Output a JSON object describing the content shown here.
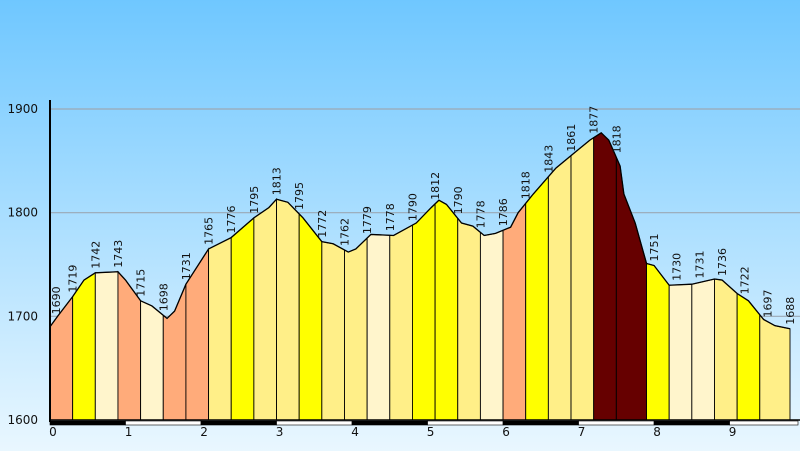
{
  "chart_data": {
    "type": "area",
    "title": "",
    "xlabel": "",
    "ylabel": "",
    "xlim": [
      0,
      9.8
    ],
    "ylim": [
      1600,
      1900
    ],
    "yticks": [
      1600,
      1700,
      1800,
      1900
    ],
    "xticks": [
      0,
      1,
      2,
      3,
      4,
      5,
      6,
      7,
      8,
      9
    ],
    "grid": true,
    "colors": {
      "background_top": "#6FC7FF",
      "background_bottom": "#E9F7FF",
      "gridline": "#9BA8B4",
      "segment_palette": {
        "orange": "#FFAB7A",
        "yellow": "#FFFF00",
        "light_yellow": "#FFEF88",
        "cream": "#FFF5CC",
        "dark_red": "#660000"
      }
    },
    "profile": [
      [
        0.0,
        1690
      ],
      [
        0.1,
        1700
      ],
      [
        0.3,
        1719
      ],
      [
        0.45,
        1735
      ],
      [
        0.6,
        1742
      ],
      [
        0.9,
        1743
      ],
      [
        1.0,
        1735
      ],
      [
        1.2,
        1715
      ],
      [
        1.35,
        1710
      ],
      [
        1.55,
        1698
      ],
      [
        1.65,
        1705
      ],
      [
        1.8,
        1731
      ],
      [
        2.1,
        1765
      ],
      [
        2.4,
        1776
      ],
      [
        2.7,
        1795
      ],
      [
        2.9,
        1805
      ],
      [
        3.0,
        1813
      ],
      [
        3.15,
        1810
      ],
      [
        3.35,
        1795
      ],
      [
        3.6,
        1772
      ],
      [
        3.75,
        1770
      ],
      [
        3.95,
        1762
      ],
      [
        4.05,
        1765
      ],
      [
        4.25,
        1779
      ],
      [
        4.55,
        1778
      ],
      [
        4.85,
        1790
      ],
      [
        5.05,
        1805
      ],
      [
        5.15,
        1812
      ],
      [
        5.25,
        1808
      ],
      [
        5.45,
        1790
      ],
      [
        5.6,
        1787
      ],
      [
        5.75,
        1778
      ],
      [
        5.9,
        1780
      ],
      [
        6.1,
        1786
      ],
      [
        6.2,
        1800
      ],
      [
        6.4,
        1818
      ],
      [
        6.7,
        1843
      ],
      [
        7.0,
        1861
      ],
      [
        7.15,
        1870
      ],
      [
        7.3,
        1877
      ],
      [
        7.4,
        1870
      ],
      [
        7.55,
        1845
      ],
      [
        7.6,
        1818
      ],
      [
        7.75,
        1790
      ],
      [
        7.9,
        1751
      ],
      [
        8.0,
        1749
      ],
      [
        8.2,
        1730
      ],
      [
        8.5,
        1731
      ],
      [
        8.8,
        1736
      ],
      [
        8.9,
        1735
      ],
      [
        9.1,
        1722
      ],
      [
        9.25,
        1715
      ],
      [
        9.45,
        1697
      ],
      [
        9.6,
        1691
      ],
      [
        9.8,
        1688
      ]
    ],
    "segments": [
      {
        "x0": 0.0,
        "x1": 0.3,
        "color": "orange"
      },
      {
        "x0": 0.3,
        "x1": 0.6,
        "color": "yellow"
      },
      {
        "x0": 0.6,
        "x1": 0.9,
        "color": "cream"
      },
      {
        "x0": 0.9,
        "x1": 1.2,
        "color": "orange"
      },
      {
        "x0": 1.2,
        "x1": 1.5,
        "color": "cream"
      },
      {
        "x0": 1.5,
        "x1": 1.8,
        "color": "orange"
      },
      {
        "x0": 1.8,
        "x1": 2.1,
        "color": "orange"
      },
      {
        "x0": 2.1,
        "x1": 2.4,
        "color": "light_yellow"
      },
      {
        "x0": 2.4,
        "x1": 2.7,
        "color": "yellow"
      },
      {
        "x0": 2.7,
        "x1": 3.0,
        "color": "light_yellow"
      },
      {
        "x0": 3.0,
        "x1": 3.3,
        "color": "light_yellow"
      },
      {
        "x0": 3.3,
        "x1": 3.6,
        "color": "yellow"
      },
      {
        "x0": 3.6,
        "x1": 3.9,
        "color": "light_yellow"
      },
      {
        "x0": 3.9,
        "x1": 4.2,
        "color": "light_yellow"
      },
      {
        "x0": 4.2,
        "x1": 4.5,
        "color": "cream"
      },
      {
        "x0": 4.5,
        "x1": 4.8,
        "color": "light_yellow"
      },
      {
        "x0": 4.8,
        "x1": 5.1,
        "color": "yellow"
      },
      {
        "x0": 5.1,
        "x1": 5.4,
        "color": "yellow"
      },
      {
        "x0": 5.4,
        "x1": 5.7,
        "color": "light_yellow"
      },
      {
        "x0": 5.7,
        "x1": 6.0,
        "color": "cream"
      },
      {
        "x0": 6.0,
        "x1": 6.3,
        "color": "orange"
      },
      {
        "x0": 6.3,
        "x1": 6.6,
        "color": "yellow"
      },
      {
        "x0": 6.6,
        "x1": 6.9,
        "color": "light_yellow"
      },
      {
        "x0": 6.9,
        "x1": 7.2,
        "color": "light_yellow"
      },
      {
        "x0": 7.2,
        "x1": 7.5,
        "color": "dark_red"
      },
      {
        "x0": 7.5,
        "x1": 7.9,
        "color": "dark_red"
      },
      {
        "x0": 7.9,
        "x1": 8.2,
        "color": "yellow"
      },
      {
        "x0": 8.2,
        "x1": 8.5,
        "color": "cream"
      },
      {
        "x0": 8.5,
        "x1": 8.8,
        "color": "cream"
      },
      {
        "x0": 8.8,
        "x1": 9.1,
        "color": "light_yellow"
      },
      {
        "x0": 9.1,
        "x1": 9.4,
        "color": "yellow"
      },
      {
        "x0": 9.4,
        "x1": 9.8,
        "color": "light_yellow"
      }
    ],
    "labels": [
      {
        "x": 0.08,
        "value": "1690"
      },
      {
        "x": 0.3,
        "value": "1719"
      },
      {
        "x": 0.6,
        "value": "1742"
      },
      {
        "x": 0.9,
        "value": "1743"
      },
      {
        "x": 1.2,
        "value": "1715"
      },
      {
        "x": 1.5,
        "value": "1698"
      },
      {
        "x": 1.8,
        "value": "1731"
      },
      {
        "x": 2.1,
        "value": "1765"
      },
      {
        "x": 2.4,
        "value": "1776"
      },
      {
        "x": 2.7,
        "value": "1795"
      },
      {
        "x": 3.0,
        "value": "1813"
      },
      {
        "x": 3.3,
        "value": "1795"
      },
      {
        "x": 3.6,
        "value": "1772"
      },
      {
        "x": 3.9,
        "value": "1762"
      },
      {
        "x": 4.2,
        "value": "1779"
      },
      {
        "x": 4.5,
        "value": "1778"
      },
      {
        "x": 4.8,
        "value": "1790"
      },
      {
        "x": 5.1,
        "value": "1812"
      },
      {
        "x": 5.4,
        "value": "1790"
      },
      {
        "x": 5.7,
        "value": "1778"
      },
      {
        "x": 6.0,
        "value": "1786"
      },
      {
        "x": 6.3,
        "value": "1818"
      },
      {
        "x": 6.6,
        "value": "1843"
      },
      {
        "x": 6.9,
        "value": "1861"
      },
      {
        "x": 7.2,
        "value": "1877"
      },
      {
        "x": 7.5,
        "value": "1818"
      },
      {
        "x": 8.0,
        "value": "1751"
      },
      {
        "x": 8.3,
        "value": "1730"
      },
      {
        "x": 8.6,
        "value": "1731"
      },
      {
        "x": 8.9,
        "value": "1736"
      },
      {
        "x": 9.2,
        "value": "1722"
      },
      {
        "x": 9.5,
        "value": "1697"
      },
      {
        "x": 9.8,
        "value": "1688"
      }
    ]
  }
}
